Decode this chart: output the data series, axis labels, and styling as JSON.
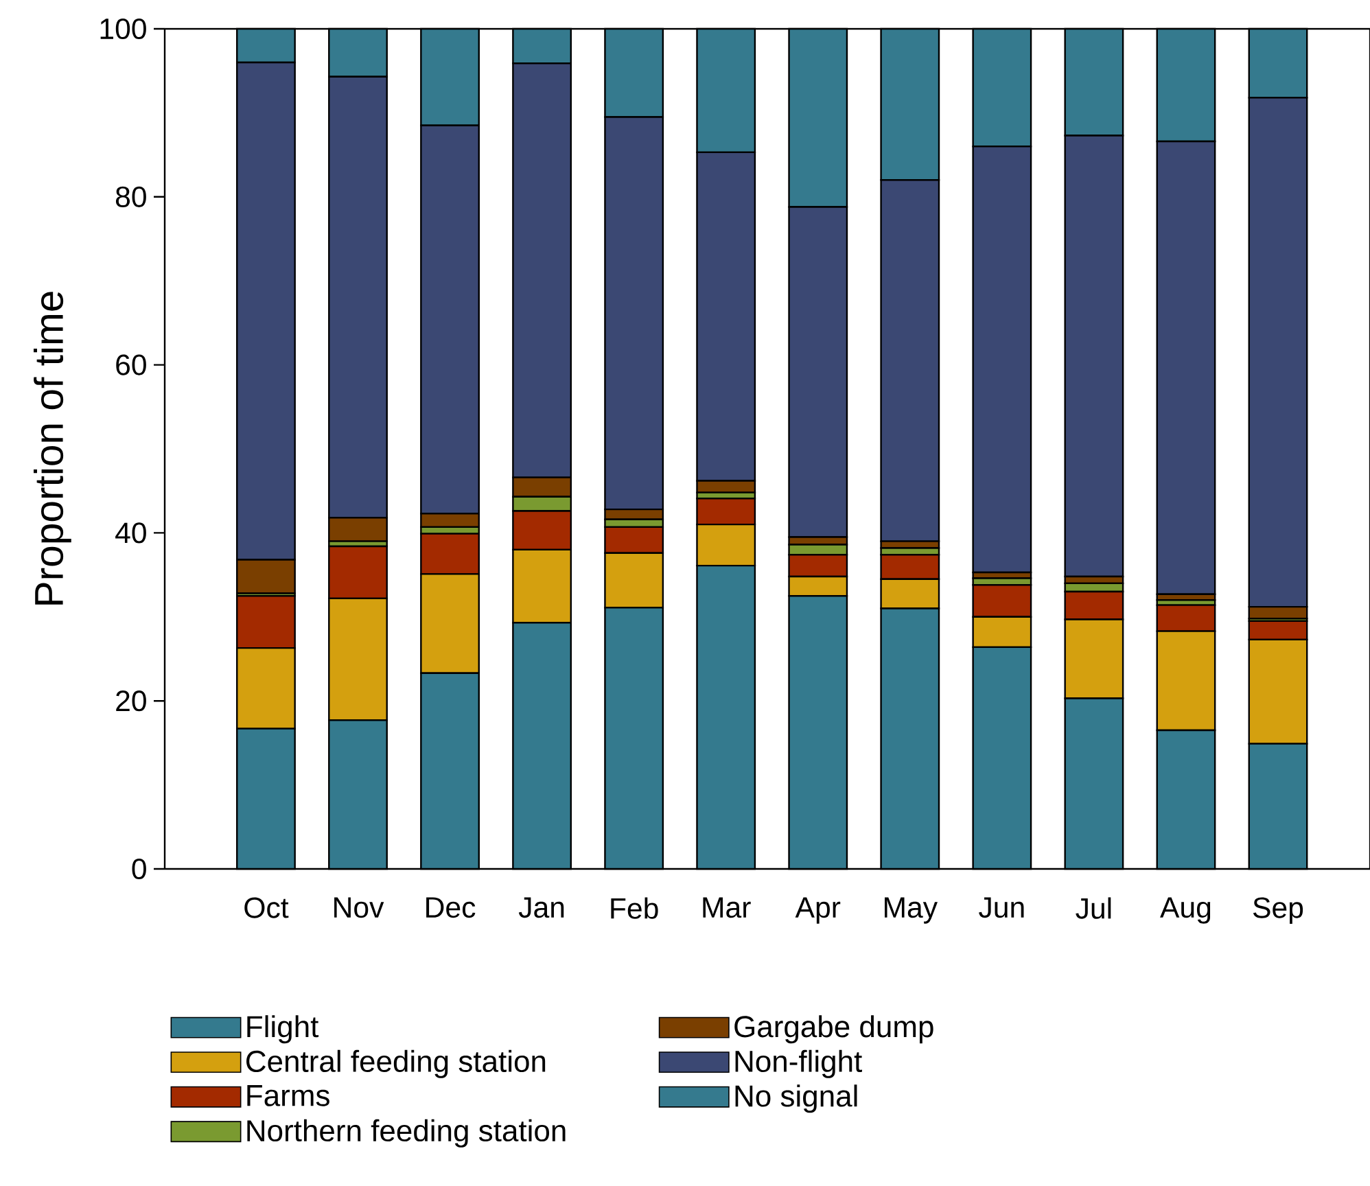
{
  "chart_data": {
    "type": "bar",
    "stacked": true,
    "ylabel": "Proportion of time",
    "categories": [
      "Oct",
      "Nov",
      "Dec",
      "Jan",
      "Feb",
      "Mar",
      "Apr",
      "May",
      "Jun",
      "Jul",
      "Aug",
      "Sep"
    ],
    "series": [
      {
        "name": "Flight",
        "color": "#347a8e",
        "values": [
          16.7,
          17.7,
          23.3,
          29.3,
          31.1,
          36.1,
          32.5,
          31.0,
          26.4,
          20.3,
          16.5,
          14.9
        ]
      },
      {
        "name": "Central feeding station",
        "color": "#d4a00f",
        "values": [
          9.6,
          14.5,
          11.8,
          8.7,
          6.5,
          4.9,
          2.3,
          3.5,
          3.6,
          9.4,
          11.8,
          12.4
        ]
      },
      {
        "name": "Farms",
        "color": "#a32a00",
        "values": [
          6.2,
          6.2,
          4.8,
          4.6,
          3.1,
          3.1,
          2.6,
          2.9,
          3.8,
          3.3,
          3.1,
          2.2
        ]
      },
      {
        "name": "Northern feeding station",
        "color": "#7a9a30",
        "values": [
          0.3,
          0.6,
          0.8,
          1.7,
          0.9,
          0.7,
          1.2,
          0.8,
          0.8,
          1.0,
          0.6,
          0.3
        ]
      },
      {
        "name": "Gargabe dump",
        "color": "#7a3f00",
        "values": [
          4.0,
          2.8,
          1.6,
          2.3,
          1.2,
          1.4,
          0.9,
          0.8,
          0.7,
          0.8,
          0.7,
          1.4
        ]
      },
      {
        "name": "Non-flight",
        "color": "#3b4873",
        "values": [
          59.2,
          52.5,
          46.2,
          49.3,
          46.7,
          39.1,
          39.3,
          43.0,
          50.7,
          52.5,
          53.9,
          60.6
        ]
      },
      {
        "name": "No signal",
        "color": "#357a8e",
        "values": [
          4.0,
          5.7,
          11.5,
          4.1,
          10.5,
          14.7,
          21.2,
          18.0,
          14.0,
          12.7,
          13.4,
          8.2
        ]
      }
    ],
    "ylim": [
      0,
      100
    ],
    "yticks": [
      0,
      20,
      40,
      60,
      80,
      100
    ],
    "legend": "bottom"
  }
}
